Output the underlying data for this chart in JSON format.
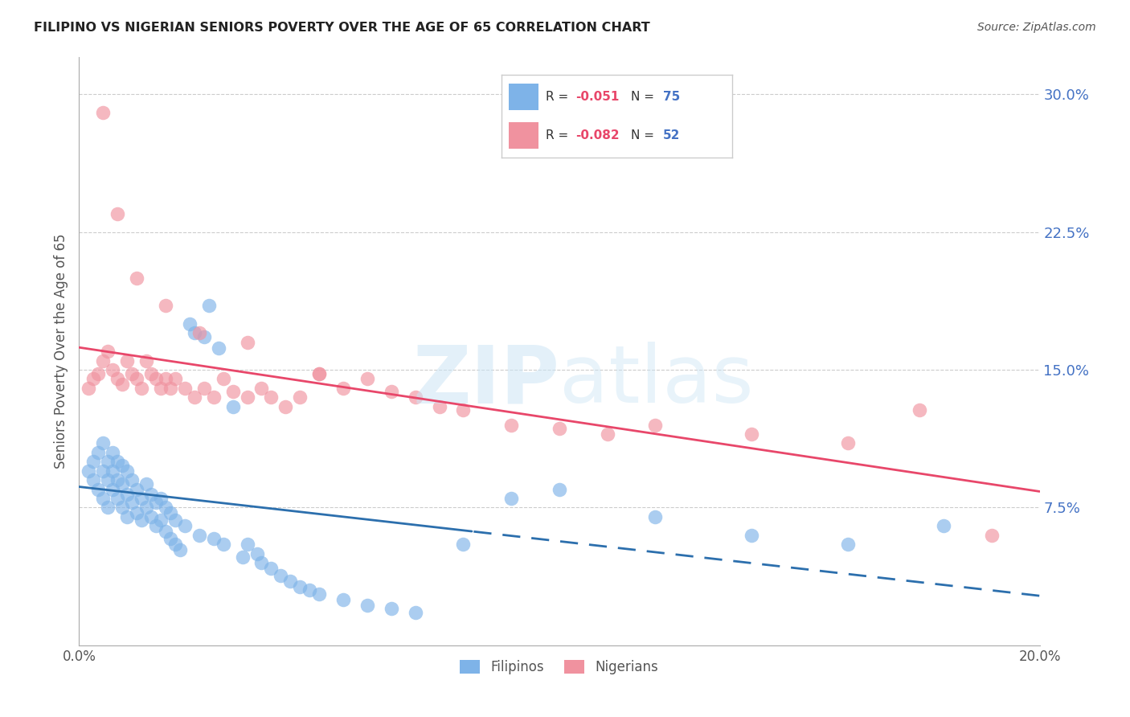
{
  "title": "FILIPINO VS NIGERIAN SENIORS POVERTY OVER THE AGE OF 65 CORRELATION CHART",
  "source": "Source: ZipAtlas.com",
  "ylabel": "Seniors Poverty Over the Age of 65",
  "ytick_labels": [
    "7.5%",
    "15.0%",
    "22.5%",
    "30.0%"
  ],
  "ytick_values": [
    0.075,
    0.15,
    0.225,
    0.3
  ],
  "xlim": [
    0.0,
    0.2
  ],
  "ylim": [
    0.0,
    0.32
  ],
  "legend1_r": "-0.051",
  "legend1_n": "75",
  "legend2_r": "-0.082",
  "legend2_n": "52",
  "filipino_color": "#7eb3e8",
  "nigerian_color": "#f0929f",
  "trendline_filipino_color": "#2c6fad",
  "trendline_nigerian_color": "#e8476a",
  "filipinos_x": [
    0.002,
    0.003,
    0.003,
    0.004,
    0.004,
    0.005,
    0.005,
    0.005,
    0.006,
    0.006,
    0.006,
    0.007,
    0.007,
    0.007,
    0.008,
    0.008,
    0.008,
    0.009,
    0.009,
    0.009,
    0.01,
    0.01,
    0.01,
    0.011,
    0.011,
    0.012,
    0.012,
    0.013,
    0.013,
    0.014,
    0.014,
    0.015,
    0.015,
    0.016,
    0.016,
    0.017,
    0.017,
    0.018,
    0.018,
    0.019,
    0.019,
    0.02,
    0.02,
    0.021,
    0.022,
    0.023,
    0.024,
    0.025,
    0.026,
    0.027,
    0.028,
    0.029,
    0.03,
    0.032,
    0.034,
    0.035,
    0.037,
    0.038,
    0.04,
    0.042,
    0.044,
    0.046,
    0.048,
    0.05,
    0.055,
    0.06,
    0.065,
    0.07,
    0.08,
    0.09,
    0.1,
    0.12,
    0.14,
    0.16,
    0.18
  ],
  "filipinos_y": [
    0.095,
    0.09,
    0.1,
    0.085,
    0.105,
    0.08,
    0.095,
    0.11,
    0.075,
    0.09,
    0.1,
    0.085,
    0.095,
    0.105,
    0.08,
    0.09,
    0.1,
    0.075,
    0.088,
    0.098,
    0.07,
    0.082,
    0.095,
    0.078,
    0.09,
    0.072,
    0.085,
    0.068,
    0.08,
    0.075,
    0.088,
    0.07,
    0.082,
    0.065,
    0.078,
    0.068,
    0.08,
    0.062,
    0.075,
    0.058,
    0.072,
    0.055,
    0.068,
    0.052,
    0.065,
    0.175,
    0.17,
    0.06,
    0.168,
    0.185,
    0.058,
    0.162,
    0.055,
    0.13,
    0.048,
    0.055,
    0.05,
    0.045,
    0.042,
    0.038,
    0.035,
    0.032,
    0.03,
    0.028,
    0.025,
    0.022,
    0.02,
    0.018,
    0.055,
    0.08,
    0.085,
    0.07,
    0.06,
    0.055,
    0.065
  ],
  "nigerians_x": [
    0.002,
    0.003,
    0.004,
    0.005,
    0.006,
    0.007,
    0.008,
    0.009,
    0.01,
    0.011,
    0.012,
    0.013,
    0.014,
    0.015,
    0.016,
    0.017,
    0.018,
    0.019,
    0.02,
    0.022,
    0.024,
    0.026,
    0.028,
    0.03,
    0.032,
    0.035,
    0.038,
    0.04,
    0.043,
    0.046,
    0.05,
    0.055,
    0.06,
    0.065,
    0.07,
    0.075,
    0.08,
    0.09,
    0.1,
    0.11,
    0.12,
    0.14,
    0.16,
    0.175,
    0.19,
    0.005,
    0.008,
    0.012,
    0.018,
    0.025,
    0.035,
    0.05
  ],
  "nigerians_y": [
    0.14,
    0.145,
    0.148,
    0.155,
    0.16,
    0.15,
    0.145,
    0.142,
    0.155,
    0.148,
    0.145,
    0.14,
    0.155,
    0.148,
    0.145,
    0.14,
    0.145,
    0.14,
    0.145,
    0.14,
    0.135,
    0.14,
    0.135,
    0.145,
    0.138,
    0.135,
    0.14,
    0.135,
    0.13,
    0.135,
    0.148,
    0.14,
    0.145,
    0.138,
    0.135,
    0.13,
    0.128,
    0.12,
    0.118,
    0.115,
    0.12,
    0.115,
    0.11,
    0.128,
    0.06,
    0.29,
    0.235,
    0.2,
    0.185,
    0.17,
    0.165,
    0.148
  ]
}
